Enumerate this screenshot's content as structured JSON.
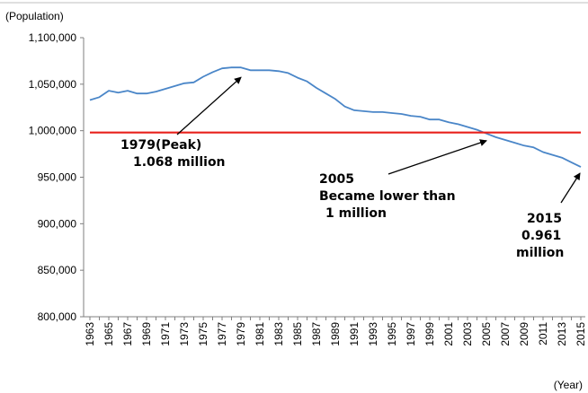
{
  "chart_data": {
    "type": "line",
    "ylabel": "(Population)",
    "xlabel": "(Year)",
    "ylim": [
      800000,
      1100000
    ],
    "y_ticks": [
      "1,100,000",
      "1,050,000",
      "1,000,000",
      "950,000",
      "900,000",
      "850,000",
      "800,000"
    ],
    "x_tick_labels": [
      "1963",
      "1965",
      "1967",
      "1969",
      "1971",
      "1973",
      "1975",
      "1977",
      "1979",
      "1981",
      "1983",
      "1985",
      "1987",
      "1989",
      "1991",
      "1993",
      "1995",
      "1997",
      "1999",
      "2001",
      "2003",
      "2005",
      "2007",
      "2009",
      "2011",
      "2013",
      "2015"
    ],
    "grid": false,
    "series": [
      {
        "color": "#4a86c8",
        "x": [
          1963,
          1964,
          1965,
          1966,
          1967,
          1968,
          1969,
          1970,
          1971,
          1972,
          1973,
          1974,
          1975,
          1976,
          1977,
          1978,
          1979,
          1980,
          1981,
          1982,
          1983,
          1984,
          1985,
          1986,
          1987,
          1988,
          1989,
          1990,
          1991,
          1992,
          1993,
          1994,
          1995,
          1996,
          1997,
          1998,
          1999,
          2000,
          2001,
          2002,
          2003,
          2004,
          2005,
          2006,
          2007,
          2008,
          2009,
          2010,
          2011,
          2012,
          2013,
          2014,
          2015
        ],
        "values": [
          1033000,
          1036000,
          1043000,
          1041000,
          1043000,
          1040000,
          1040000,
          1042000,
          1045000,
          1048000,
          1051000,
          1052000,
          1058000,
          1063000,
          1067000,
          1068000,
          1068000,
          1065000,
          1065000,
          1065000,
          1064000,
          1062000,
          1057000,
          1053000,
          1046000,
          1040000,
          1034000,
          1026000,
          1022000,
          1021000,
          1020000,
          1020000,
          1019000,
          1018000,
          1016000,
          1015000,
          1012000,
          1012000,
          1009000,
          1007000,
          1004000,
          1001000,
          997000,
          993000,
          990000,
          987000,
          984000,
          982000,
          977000,
          974000,
          971000,
          966000,
          961000
        ]
      },
      {
        "color": "#e8211c",
        "x": [
          1963,
          2015
        ],
        "values": [
          998000,
          998000
        ]
      }
    ],
    "annotations": [
      {
        "lines": [
          "1979(Peak)",
          "1.068 million"
        ],
        "target_x": 1979,
        "target_y": 1068000
      },
      {
        "lines": [
          "2005",
          "Became lower than",
          "1 million"
        ],
        "target_x": 2005,
        "target_y": 997000
      },
      {
        "lines": [
          "2015",
          "0.961",
          "million"
        ],
        "target_x": 2015,
        "target_y": 961000
      }
    ]
  }
}
